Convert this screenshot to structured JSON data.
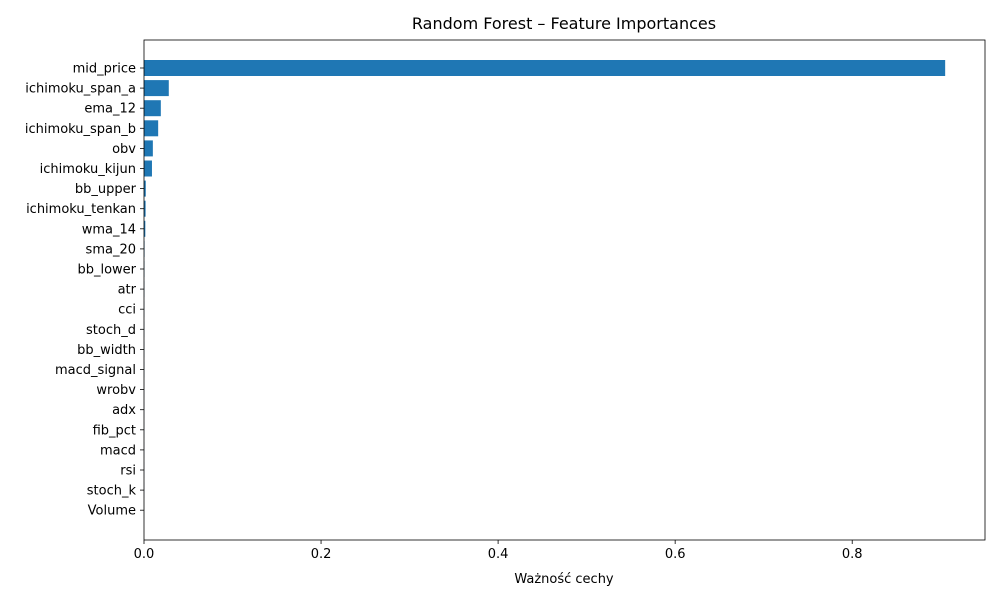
{
  "chart_data": {
    "type": "bar",
    "orientation": "horizontal",
    "title": "Random Forest – Feature Importances",
    "xlabel": "Ważność cechy",
    "ylabel": "",
    "xlim": [
      0,
      0.95
    ],
    "xticks": [
      0.0,
      0.2,
      0.4,
      0.6,
      0.8
    ],
    "xtick_labels": [
      "0.0",
      "0.2",
      "0.4",
      "0.6",
      "0.8"
    ],
    "grid": false,
    "bar_color": "#1f77b4",
    "categories": [
      "mid_price",
      "ichimoku_span_a",
      "ema_12",
      "ichimoku_span_b",
      "obv",
      "ichimoku_kijun",
      "bb_upper",
      "ichimoku_tenkan",
      "wma_14",
      "sma_20",
      "bb_lower",
      "atr",
      "cci",
      "stoch_d",
      "bb_width",
      "macd_signal",
      "wrobv",
      "adx",
      "fib_pct",
      "macd",
      "rsi",
      "stoch_k",
      "Volume"
    ],
    "values": [
      0.905,
      0.028,
      0.019,
      0.016,
      0.01,
      0.009,
      0.002,
      0.0018,
      0.0015,
      0.0006,
      0.0004,
      0.0003,
      0.0002,
      0.0002,
      0.0002,
      0.0002,
      0.0001,
      0.0001,
      0.0001,
      0.0001,
      0.0001,
      0.0001,
      5e-05
    ]
  }
}
